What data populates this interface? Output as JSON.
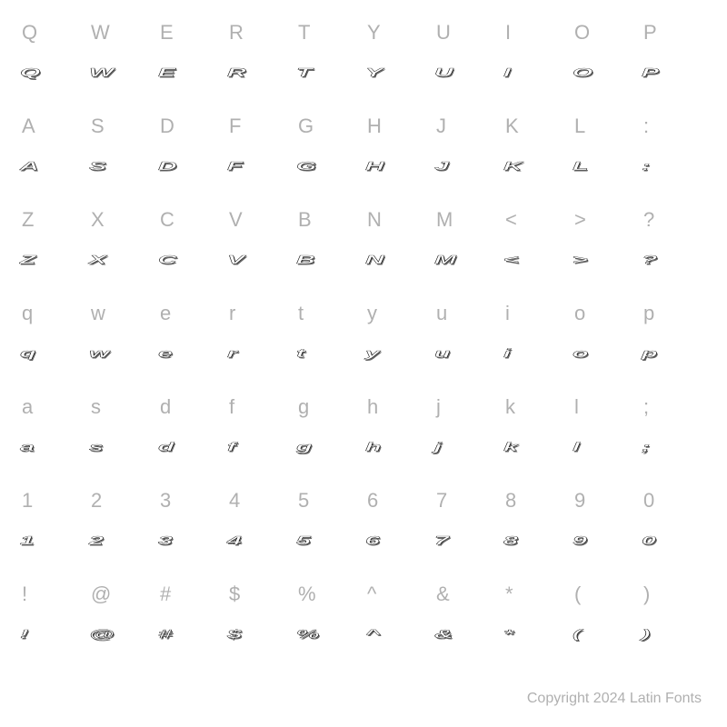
{
  "background_color": "#ffffff",
  "label_color": "#b0b0b0",
  "glyph_stroke_color": "#000000",
  "glyph_fill_color": "#ffffff",
  "label_fontsize": 22,
  "glyph_fontsize": 22,
  "grid": {
    "columns": 10,
    "rows": 7
  },
  "rows": [
    [
      {
        "label": "Q",
        "glyph": "Q"
      },
      {
        "label": "W",
        "glyph": "W"
      },
      {
        "label": "E",
        "glyph": "E"
      },
      {
        "label": "R",
        "glyph": "R"
      },
      {
        "label": "T",
        "glyph": "T"
      },
      {
        "label": "Y",
        "glyph": "Y"
      },
      {
        "label": "U",
        "glyph": "U"
      },
      {
        "label": "I",
        "glyph": "I"
      },
      {
        "label": "O",
        "glyph": "O"
      },
      {
        "label": "P",
        "glyph": "P"
      }
    ],
    [
      {
        "label": "A",
        "glyph": "A"
      },
      {
        "label": "S",
        "glyph": "S"
      },
      {
        "label": "D",
        "glyph": "D"
      },
      {
        "label": "F",
        "glyph": "F"
      },
      {
        "label": "G",
        "glyph": "G"
      },
      {
        "label": "H",
        "glyph": "H"
      },
      {
        "label": "J",
        "glyph": "J"
      },
      {
        "label": "K",
        "glyph": "K"
      },
      {
        "label": "L",
        "glyph": "L"
      },
      {
        "label": ":",
        "glyph": ":"
      }
    ],
    [
      {
        "label": "Z",
        "glyph": "Z"
      },
      {
        "label": "X",
        "glyph": "X"
      },
      {
        "label": "C",
        "glyph": "C"
      },
      {
        "label": "V",
        "glyph": "V"
      },
      {
        "label": "B",
        "glyph": "B"
      },
      {
        "label": "N",
        "glyph": "N"
      },
      {
        "label": "M",
        "glyph": "M"
      },
      {
        "label": "<",
        "glyph": "<"
      },
      {
        "label": ">",
        "glyph": ">"
      },
      {
        "label": "?",
        "glyph": "?"
      }
    ],
    [
      {
        "label": "q",
        "glyph": "q"
      },
      {
        "label": "w",
        "glyph": "w"
      },
      {
        "label": "e",
        "glyph": "e"
      },
      {
        "label": "r",
        "glyph": "r"
      },
      {
        "label": "t",
        "glyph": "t"
      },
      {
        "label": "y",
        "glyph": "y"
      },
      {
        "label": "u",
        "glyph": "u"
      },
      {
        "label": "i",
        "glyph": "i"
      },
      {
        "label": "o",
        "glyph": "o"
      },
      {
        "label": "p",
        "glyph": "p"
      }
    ],
    [
      {
        "label": "a",
        "glyph": "a"
      },
      {
        "label": "s",
        "glyph": "s"
      },
      {
        "label": "d",
        "glyph": "d"
      },
      {
        "label": "f",
        "glyph": "f"
      },
      {
        "label": "g",
        "glyph": "g"
      },
      {
        "label": "h",
        "glyph": "h"
      },
      {
        "label": "j",
        "glyph": "j"
      },
      {
        "label": "k",
        "glyph": "k"
      },
      {
        "label": "l",
        "glyph": "l"
      },
      {
        "label": ";",
        "glyph": ";"
      }
    ],
    [
      {
        "label": "1",
        "glyph": "1"
      },
      {
        "label": "2",
        "glyph": "2"
      },
      {
        "label": "3",
        "glyph": "3"
      },
      {
        "label": "4",
        "glyph": "4"
      },
      {
        "label": "5",
        "glyph": "5"
      },
      {
        "label": "6",
        "glyph": "6"
      },
      {
        "label": "7",
        "glyph": "7"
      },
      {
        "label": "8",
        "glyph": "8"
      },
      {
        "label": "9",
        "glyph": "9"
      },
      {
        "label": "0",
        "glyph": "0"
      }
    ],
    [
      {
        "label": "!",
        "glyph": "!"
      },
      {
        "label": "@",
        "glyph": "@"
      },
      {
        "label": "#",
        "glyph": "#"
      },
      {
        "label": "$",
        "glyph": "$"
      },
      {
        "label": "%",
        "glyph": "%"
      },
      {
        "label": "^",
        "glyph": "^"
      },
      {
        "label": "&",
        "glyph": "&"
      },
      {
        "label": "*",
        "glyph": "*"
      },
      {
        "label": "(",
        "glyph": "("
      },
      {
        "label": ")",
        "glyph": ")"
      }
    ]
  ],
  "copyright": "Copyright 2024 Latin Fonts"
}
